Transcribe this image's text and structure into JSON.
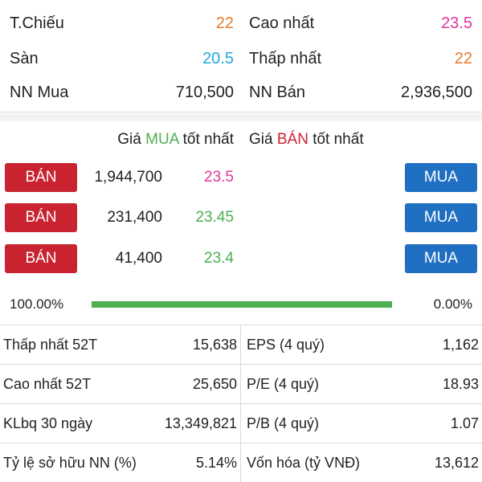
{
  "summary": [
    {
      "left_label": "T.Chiếu",
      "left_value": "22",
      "right_label": "Cao nhất",
      "right_value": "23.5"
    },
    {
      "left_label": "Sàn",
      "left_value": "20.5",
      "right_label": "Thấp nhất",
      "right_value": "22"
    },
    {
      "left_label": "NN Mua",
      "left_value": "710,500",
      "right_label": "NN Bán",
      "right_value": "2,936,500"
    }
  ],
  "order_book": {
    "buy_header": {
      "prefix": "Giá ",
      "highlight": "MUA",
      "suffix": " tốt nhất"
    },
    "sell_header": {
      "prefix": "Giá ",
      "highlight": "BÁN",
      "suffix": " tốt nhất"
    },
    "rows": [
      {
        "sell_button": "BÁN",
        "quantity": "1,944,700",
        "price": "23.5",
        "buy_button": "MUA"
      },
      {
        "sell_button": "BÁN",
        "quantity": "231,400",
        "price": "23.45",
        "buy_button": "MUA"
      },
      {
        "sell_button": "BÁN",
        "quantity": "41,400",
        "price": "23.4",
        "buy_button": "MUA"
      }
    ],
    "buy_ratio_label": "100.00%",
    "sell_ratio_label": "0.00%",
    "buy_ratio": 1.0
  },
  "stats": [
    {
      "left_label": "Thấp nhất 52T",
      "left_value": "15,638",
      "right_label": "EPS (4 quý)",
      "right_value": "1,162"
    },
    {
      "left_label": "Cao nhất 52T",
      "left_value": "25,650",
      "right_label": "P/E (4 quý)",
      "right_value": "18.93"
    },
    {
      "left_label": "KLbq 30 ngày",
      "left_value": "13,349,821",
      "right_label": "P/B (4 quý)",
      "right_value": "1.07"
    },
    {
      "left_label": "Tỷ lệ sở hữu NN (%)",
      "left_value": "5.14%",
      "right_label": "Vốn hóa (tỷ VNĐ)",
      "right_value": "13,612"
    }
  ],
  "colors": {
    "reference": "#e57a2c",
    "ceiling_high": "#e0359c",
    "floor": "#1fa8de",
    "up": "#4caf50",
    "sell_button": "#c8232f",
    "buy_button": "#1f6fc2"
  }
}
